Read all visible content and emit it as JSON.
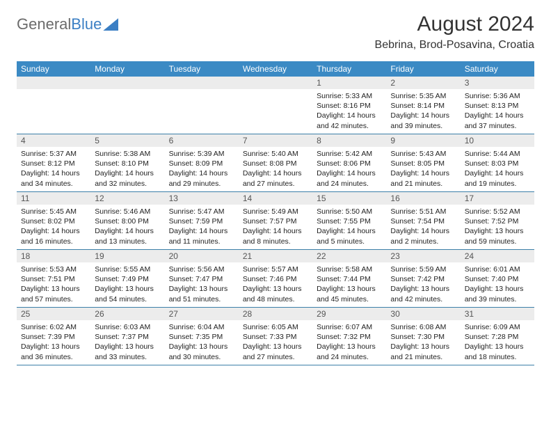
{
  "logo": {
    "text1": "General",
    "text2": "Blue"
  },
  "title": "August 2024",
  "location": "Bebrina, Brod-Posavina, Croatia",
  "colors": {
    "headerBar": "#3b8ac4",
    "rowDivider": "#3b7fa8",
    "dayNumberBg": "#ececec",
    "logoGray": "#6b6b6b",
    "logoBlue": "#3b7fc4"
  },
  "weekdays": [
    "Sunday",
    "Monday",
    "Tuesday",
    "Wednesday",
    "Thursday",
    "Friday",
    "Saturday"
  ],
  "weeks": [
    [
      {
        "n": "",
        "empty": true
      },
      {
        "n": "",
        "empty": true
      },
      {
        "n": "",
        "empty": true
      },
      {
        "n": "",
        "empty": true
      },
      {
        "n": "1",
        "sunrise": "Sunrise: 5:33 AM",
        "sunset": "Sunset: 8:16 PM",
        "daylight": "Daylight: 14 hours and 42 minutes."
      },
      {
        "n": "2",
        "sunrise": "Sunrise: 5:35 AM",
        "sunset": "Sunset: 8:14 PM",
        "daylight": "Daylight: 14 hours and 39 minutes."
      },
      {
        "n": "3",
        "sunrise": "Sunrise: 5:36 AM",
        "sunset": "Sunset: 8:13 PM",
        "daylight": "Daylight: 14 hours and 37 minutes."
      }
    ],
    [
      {
        "n": "4",
        "sunrise": "Sunrise: 5:37 AM",
        "sunset": "Sunset: 8:12 PM",
        "daylight": "Daylight: 14 hours and 34 minutes."
      },
      {
        "n": "5",
        "sunrise": "Sunrise: 5:38 AM",
        "sunset": "Sunset: 8:10 PM",
        "daylight": "Daylight: 14 hours and 32 minutes."
      },
      {
        "n": "6",
        "sunrise": "Sunrise: 5:39 AM",
        "sunset": "Sunset: 8:09 PM",
        "daylight": "Daylight: 14 hours and 29 minutes."
      },
      {
        "n": "7",
        "sunrise": "Sunrise: 5:40 AM",
        "sunset": "Sunset: 8:08 PM",
        "daylight": "Daylight: 14 hours and 27 minutes."
      },
      {
        "n": "8",
        "sunrise": "Sunrise: 5:42 AM",
        "sunset": "Sunset: 8:06 PM",
        "daylight": "Daylight: 14 hours and 24 minutes."
      },
      {
        "n": "9",
        "sunrise": "Sunrise: 5:43 AM",
        "sunset": "Sunset: 8:05 PM",
        "daylight": "Daylight: 14 hours and 21 minutes."
      },
      {
        "n": "10",
        "sunrise": "Sunrise: 5:44 AM",
        "sunset": "Sunset: 8:03 PM",
        "daylight": "Daylight: 14 hours and 19 minutes."
      }
    ],
    [
      {
        "n": "11",
        "sunrise": "Sunrise: 5:45 AM",
        "sunset": "Sunset: 8:02 PM",
        "daylight": "Daylight: 14 hours and 16 minutes."
      },
      {
        "n": "12",
        "sunrise": "Sunrise: 5:46 AM",
        "sunset": "Sunset: 8:00 PM",
        "daylight": "Daylight: 14 hours and 13 minutes."
      },
      {
        "n": "13",
        "sunrise": "Sunrise: 5:47 AM",
        "sunset": "Sunset: 7:59 PM",
        "daylight": "Daylight: 14 hours and 11 minutes."
      },
      {
        "n": "14",
        "sunrise": "Sunrise: 5:49 AM",
        "sunset": "Sunset: 7:57 PM",
        "daylight": "Daylight: 14 hours and 8 minutes."
      },
      {
        "n": "15",
        "sunrise": "Sunrise: 5:50 AM",
        "sunset": "Sunset: 7:55 PM",
        "daylight": "Daylight: 14 hours and 5 minutes."
      },
      {
        "n": "16",
        "sunrise": "Sunrise: 5:51 AM",
        "sunset": "Sunset: 7:54 PM",
        "daylight": "Daylight: 14 hours and 2 minutes."
      },
      {
        "n": "17",
        "sunrise": "Sunrise: 5:52 AM",
        "sunset": "Sunset: 7:52 PM",
        "daylight": "Daylight: 13 hours and 59 minutes."
      }
    ],
    [
      {
        "n": "18",
        "sunrise": "Sunrise: 5:53 AM",
        "sunset": "Sunset: 7:51 PM",
        "daylight": "Daylight: 13 hours and 57 minutes."
      },
      {
        "n": "19",
        "sunrise": "Sunrise: 5:55 AM",
        "sunset": "Sunset: 7:49 PM",
        "daylight": "Daylight: 13 hours and 54 minutes."
      },
      {
        "n": "20",
        "sunrise": "Sunrise: 5:56 AM",
        "sunset": "Sunset: 7:47 PM",
        "daylight": "Daylight: 13 hours and 51 minutes."
      },
      {
        "n": "21",
        "sunrise": "Sunrise: 5:57 AM",
        "sunset": "Sunset: 7:46 PM",
        "daylight": "Daylight: 13 hours and 48 minutes."
      },
      {
        "n": "22",
        "sunrise": "Sunrise: 5:58 AM",
        "sunset": "Sunset: 7:44 PM",
        "daylight": "Daylight: 13 hours and 45 minutes."
      },
      {
        "n": "23",
        "sunrise": "Sunrise: 5:59 AM",
        "sunset": "Sunset: 7:42 PM",
        "daylight": "Daylight: 13 hours and 42 minutes."
      },
      {
        "n": "24",
        "sunrise": "Sunrise: 6:01 AM",
        "sunset": "Sunset: 7:40 PM",
        "daylight": "Daylight: 13 hours and 39 minutes."
      }
    ],
    [
      {
        "n": "25",
        "sunrise": "Sunrise: 6:02 AM",
        "sunset": "Sunset: 7:39 PM",
        "daylight": "Daylight: 13 hours and 36 minutes."
      },
      {
        "n": "26",
        "sunrise": "Sunrise: 6:03 AM",
        "sunset": "Sunset: 7:37 PM",
        "daylight": "Daylight: 13 hours and 33 minutes."
      },
      {
        "n": "27",
        "sunrise": "Sunrise: 6:04 AM",
        "sunset": "Sunset: 7:35 PM",
        "daylight": "Daylight: 13 hours and 30 minutes."
      },
      {
        "n": "28",
        "sunrise": "Sunrise: 6:05 AM",
        "sunset": "Sunset: 7:33 PM",
        "daylight": "Daylight: 13 hours and 27 minutes."
      },
      {
        "n": "29",
        "sunrise": "Sunrise: 6:07 AM",
        "sunset": "Sunset: 7:32 PM",
        "daylight": "Daylight: 13 hours and 24 minutes."
      },
      {
        "n": "30",
        "sunrise": "Sunrise: 6:08 AM",
        "sunset": "Sunset: 7:30 PM",
        "daylight": "Daylight: 13 hours and 21 minutes."
      },
      {
        "n": "31",
        "sunrise": "Sunrise: 6:09 AM",
        "sunset": "Sunset: 7:28 PM",
        "daylight": "Daylight: 13 hours and 18 minutes."
      }
    ]
  ]
}
